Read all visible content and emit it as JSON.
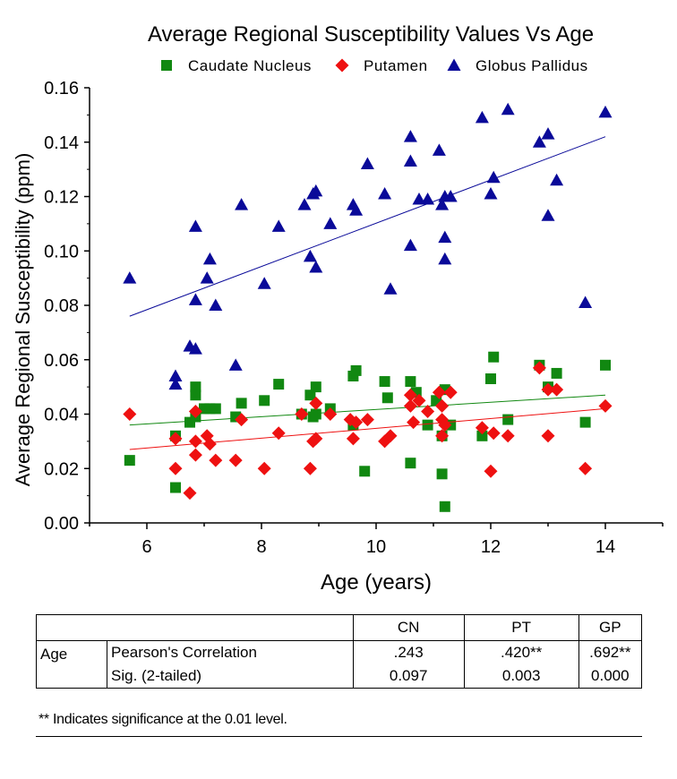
{
  "chart_data": {
    "type": "scatter",
    "title": "Average Regional Susceptibility Values Vs Age",
    "xlabel": "Age (years)",
    "ylabel": "Average Regional Susceptibility (ppm)",
    "xlim": [
      5,
      15
    ],
    "ylim": [
      0,
      0.16
    ],
    "xticks": [
      "6",
      "8",
      "10",
      "12",
      "14"
    ],
    "yticks": [
      "0.00",
      "0.02",
      "0.04",
      "0.06",
      "0.08",
      "0.10",
      "0.12",
      "0.14",
      "0.16"
    ],
    "legend_position": "top",
    "series": [
      {
        "name": "Caudate Nucleus",
        "color": "#118811",
        "marker": "square",
        "fit": [
          [
            5.7,
            0.036
          ],
          [
            14.0,
            0.047
          ]
        ],
        "points": [
          [
            5.7,
            0.023
          ],
          [
            6.5,
            0.032
          ],
          [
            6.5,
            0.013
          ],
          [
            6.75,
            0.037
          ],
          [
            6.85,
            0.05
          ],
          [
            6.85,
            0.047
          ],
          [
            6.85,
            0.039
          ],
          [
            7.0,
            0.042
          ],
          [
            7.1,
            0.042
          ],
          [
            7.2,
            0.042
          ],
          [
            7.55,
            0.039
          ],
          [
            7.65,
            0.044
          ],
          [
            8.05,
            0.045
          ],
          [
            8.3,
            0.051
          ],
          [
            8.7,
            0.04
          ],
          [
            8.85,
            0.047
          ],
          [
            8.9,
            0.039
          ],
          [
            8.95,
            0.04
          ],
          [
            8.95,
            0.05
          ],
          [
            9.2,
            0.042
          ],
          [
            9.6,
            0.036
          ],
          [
            9.6,
            0.054
          ],
          [
            9.65,
            0.056
          ],
          [
            9.8,
            0.019
          ],
          [
            10.15,
            0.052
          ],
          [
            10.2,
            0.046
          ],
          [
            10.6,
            0.022
          ],
          [
            10.6,
            0.052
          ],
          [
            10.7,
            0.048
          ],
          [
            10.9,
            0.036
          ],
          [
            11.05,
            0.045
          ],
          [
            11.15,
            0.018
          ],
          [
            11.15,
            0.032
          ],
          [
            11.2,
            0.049
          ],
          [
            11.2,
            0.006
          ],
          [
            11.3,
            0.036
          ],
          [
            11.85,
            0.032
          ],
          [
            12.0,
            0.053
          ],
          [
            12.05,
            0.061
          ],
          [
            12.3,
            0.038
          ],
          [
            12.85,
            0.058
          ],
          [
            13.0,
            0.05
          ],
          [
            13.15,
            0.055
          ],
          [
            13.65,
            0.037
          ],
          [
            14.0,
            0.058
          ]
        ]
      },
      {
        "name": "Putamen",
        "color": "#ee1111",
        "marker": "diamond",
        "fit": [
          [
            5.7,
            0.027
          ],
          [
            14.0,
            0.042
          ]
        ],
        "points": [
          [
            5.7,
            0.04
          ],
          [
            6.5,
            0.031
          ],
          [
            6.5,
            0.02
          ],
          [
            6.75,
            0.011
          ],
          [
            6.85,
            0.041
          ],
          [
            6.85,
            0.03
          ],
          [
            6.85,
            0.025
          ],
          [
            7.05,
            0.032
          ],
          [
            7.1,
            0.029
          ],
          [
            7.2,
            0.023
          ],
          [
            7.55,
            0.023
          ],
          [
            7.65,
            0.038
          ],
          [
            8.05,
            0.02
          ],
          [
            8.3,
            0.033
          ],
          [
            8.7,
            0.04
          ],
          [
            8.85,
            0.02
          ],
          [
            8.9,
            0.03
          ],
          [
            8.95,
            0.044
          ],
          [
            8.95,
            0.031
          ],
          [
            9.2,
            0.04
          ],
          [
            9.55,
            0.038
          ],
          [
            9.6,
            0.031
          ],
          [
            9.65,
            0.037
          ],
          [
            9.85,
            0.038
          ],
          [
            10.15,
            0.03
          ],
          [
            10.25,
            0.032
          ],
          [
            10.6,
            0.043
          ],
          [
            10.6,
            0.047
          ],
          [
            10.65,
            0.037
          ],
          [
            10.75,
            0.045
          ],
          [
            10.9,
            0.041
          ],
          [
            11.1,
            0.048
          ],
          [
            11.15,
            0.043
          ],
          [
            11.15,
            0.038
          ],
          [
            11.15,
            0.032
          ],
          [
            11.2,
            0.036
          ],
          [
            11.3,
            0.048
          ],
          [
            11.85,
            0.035
          ],
          [
            12.0,
            0.019
          ],
          [
            12.05,
            0.033
          ],
          [
            12.3,
            0.032
          ],
          [
            12.85,
            0.057
          ],
          [
            13.0,
            0.049
          ],
          [
            13.0,
            0.032
          ],
          [
            13.15,
            0.049
          ],
          [
            13.65,
            0.02
          ],
          [
            14.0,
            0.043
          ]
        ]
      },
      {
        "name": "Globus Pallidus",
        "color": "#0a0a99",
        "marker": "triangle",
        "fit": [
          [
            5.7,
            0.076
          ],
          [
            14.0,
            0.142
          ]
        ],
        "points": [
          [
            5.7,
            0.09
          ],
          [
            6.5,
            0.054
          ],
          [
            6.5,
            0.051
          ],
          [
            6.75,
            0.065
          ],
          [
            6.85,
            0.109
          ],
          [
            6.85,
            0.082
          ],
          [
            6.85,
            0.064
          ],
          [
            7.05,
            0.09
          ],
          [
            7.1,
            0.097
          ],
          [
            7.2,
            0.08
          ],
          [
            7.55,
            0.058
          ],
          [
            7.65,
            0.117
          ],
          [
            8.05,
            0.088
          ],
          [
            8.3,
            0.109
          ],
          [
            8.75,
            0.117
          ],
          [
            8.85,
            0.098
          ],
          [
            8.9,
            0.121
          ],
          [
            8.95,
            0.122
          ],
          [
            8.95,
            0.094
          ],
          [
            9.2,
            0.11
          ],
          [
            9.6,
            0.117
          ],
          [
            9.65,
            0.115
          ],
          [
            9.85,
            0.132
          ],
          [
            10.15,
            0.121
          ],
          [
            10.25,
            0.086
          ],
          [
            10.6,
            0.142
          ],
          [
            10.6,
            0.133
          ],
          [
            10.6,
            0.102
          ],
          [
            10.75,
            0.119
          ],
          [
            10.9,
            0.119
          ],
          [
            11.1,
            0.137
          ],
          [
            11.15,
            0.117
          ],
          [
            11.2,
            0.12
          ],
          [
            11.2,
            0.105
          ],
          [
            11.2,
            0.097
          ],
          [
            11.3,
            0.12
          ],
          [
            11.85,
            0.149
          ],
          [
            12.0,
            0.121
          ],
          [
            12.05,
            0.127
          ],
          [
            12.3,
            0.152
          ],
          [
            12.85,
            0.14
          ],
          [
            13.0,
            0.143
          ],
          [
            13.0,
            0.113
          ],
          [
            13.15,
            0.126
          ],
          [
            13.65,
            0.081
          ],
          [
            14.0,
            0.151
          ]
        ]
      }
    ]
  },
  "table": {
    "headers": [
      "",
      "",
      "CN",
      "PT",
      "GP"
    ],
    "row_label": "Age",
    "rows": [
      {
        "measure": "Pearson's Correlation",
        "cn": ".243",
        "pt": ".420**",
        "gp": ".692**"
      },
      {
        "measure": "Sig. (2-tailed)",
        "cn": "0.097",
        "pt": "0.003",
        "gp": "0.000"
      }
    ],
    "footnote": "** Indicates significance at the 0.01 level."
  }
}
